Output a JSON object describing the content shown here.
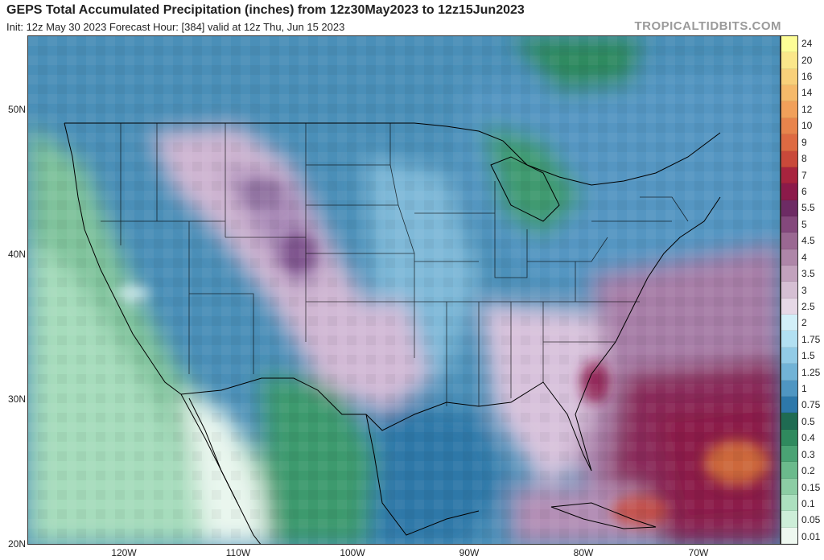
{
  "header": {
    "title": "GEPS Total Accumulated Precipitation (inches) from 12z30May2023 to 12z15Jun2023",
    "subtitle": "Init: 12z May 30 2023   Forecast Hour: [384]   valid at 12z Thu, Jun 15 2023",
    "brand": "TROPICALTIDBITS.COM"
  },
  "axes": {
    "lat_labels": [
      "50N",
      "40N",
      "30N",
      "20N"
    ],
    "lon_labels": [
      "120W",
      "110W",
      "100W",
      "90W",
      "80W",
      "70W"
    ]
  },
  "colorbar": {
    "levels": [
      "24",
      "20",
      "16",
      "14",
      "12",
      "10",
      "9",
      "8",
      "7",
      "6",
      "5.5",
      "5",
      "4.5",
      "4",
      "3.5",
      "3",
      "2.5",
      "2",
      "1.75",
      "1.5",
      "1.25",
      "1",
      "0.75",
      "0.5",
      "0.4",
      "0.3",
      "0.2",
      "0.15",
      "0.1",
      "0.05",
      "0.01"
    ],
    "colors": [
      "#fdfd96",
      "#fbe78a",
      "#f8d07a",
      "#f5b96a",
      "#f1a05a",
      "#e8844c",
      "#de6a42",
      "#c9493a",
      "#a8243e",
      "#8c1a4a",
      "#6d2b64",
      "#84487c",
      "#9a6892",
      "#ae86a8",
      "#c2a2bd",
      "#d5bfd3",
      "#e6d8e6",
      "#d2eff8",
      "#b2e0f2",
      "#92cbe6",
      "#72b3d6",
      "#4f96c2",
      "#2d78aa",
      "#1f6b52",
      "#2f8a5e",
      "#4aa374",
      "#6bba8c",
      "#8ccda4",
      "#ace0bf",
      "#cdeed8",
      "#eef8f0"
    ]
  },
  "map": {
    "description_colors": {
      "ocean_pacific": "#8cc9a6",
      "land_west_dry": "#5fa8c8",
      "land_east": "#4a8fb8",
      "heavy_atlantic": "#8c1a4a"
    }
  }
}
